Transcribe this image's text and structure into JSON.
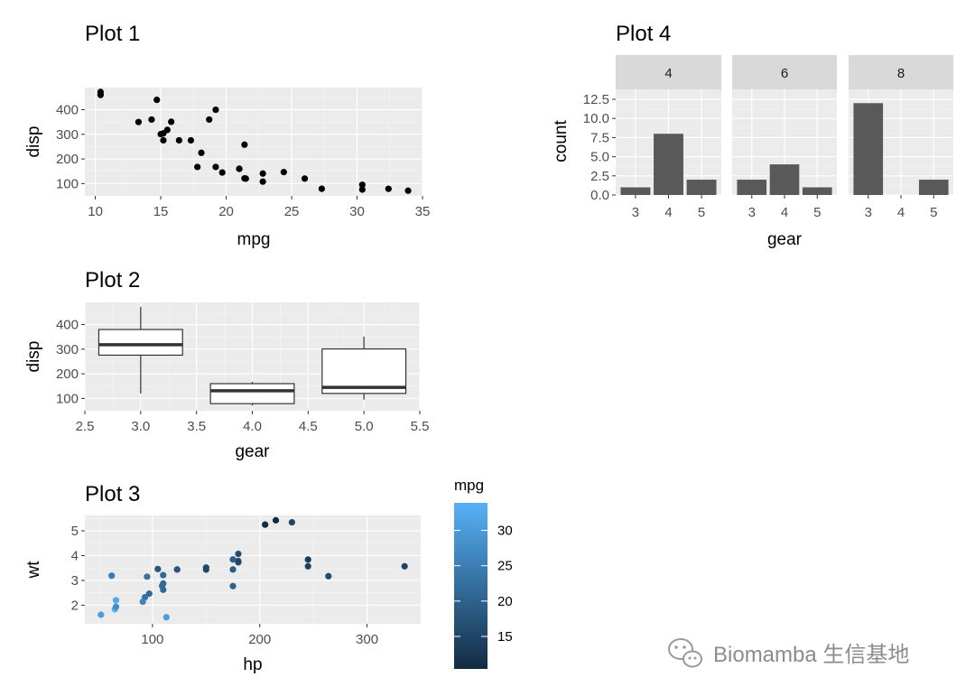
{
  "chart_data": [
    {
      "id": "p1",
      "type": "scatter",
      "title": "Plot 1",
      "xlabel": "mpg",
      "ylabel": "disp",
      "xlim": [
        9.2,
        35
      ],
      "ylim": [
        50,
        490
      ],
      "xticks": [
        10,
        15,
        20,
        25,
        30,
        35
      ],
      "yticks": [
        100,
        200,
        300,
        400
      ],
      "grid": true,
      "x": [
        21,
        21,
        22.8,
        21.4,
        18.7,
        18.1,
        14.3,
        24.4,
        22.8,
        19.2,
        17.8,
        16.4,
        17.3,
        15.2,
        10.4,
        10.4,
        14.7,
        32.4,
        30.4,
        33.9,
        21.5,
        15.5,
        15.2,
        13.3,
        19.2,
        27.3,
        26,
        30.4,
        15.8,
        19.7,
        15,
        21.4
      ],
      "y": [
        160,
        160,
        108,
        258,
        360,
        225,
        360,
        146.7,
        140.8,
        167.6,
        167.6,
        275.8,
        275.8,
        275.8,
        472,
        460,
        440,
        78.7,
        75.7,
        71.1,
        120.1,
        318,
        304,
        350,
        400,
        79,
        120.3,
        95.1,
        351,
        145,
        301,
        121
      ]
    },
    {
      "id": "p2",
      "type": "box",
      "title": "Plot 2",
      "xlabel": "gear",
      "ylabel": "disp",
      "xlim": [
        2.5,
        5.5
      ],
      "ylim": [
        50,
        490
      ],
      "xticks": [
        "2.5",
        "3.0",
        "3.5",
        "4.0",
        "4.5",
        "5.0",
        "5.5"
      ],
      "yticks": [
        100,
        200,
        300,
        400
      ],
      "grid": true,
      "boxes": [
        {
          "x": 3,
          "min": 120.1,
          "q1": 275.8,
          "median": 318,
          "q3": 380,
          "max": 472
        },
        {
          "x": 4,
          "min": 71.1,
          "q1": 78.9,
          "median": 130.9,
          "q3": 160,
          "max": 167.6
        },
        {
          "x": 5,
          "min": 95.1,
          "q1": 120.3,
          "median": 145,
          "q3": 301,
          "max": 351
        }
      ]
    },
    {
      "id": "p3",
      "type": "scatter",
      "title": "Plot 3",
      "xlabel": "hp",
      "ylabel": "wt",
      "xlim": [
        37,
        350
      ],
      "ylim": [
        1.25,
        5.62
      ],
      "xticks": [
        100,
        200,
        300
      ],
      "yticks": [
        2,
        3,
        4,
        5
      ],
      "grid": true,
      "x": [
        110,
        110,
        93,
        110,
        175,
        105,
        245,
        62,
        95,
        123,
        123,
        180,
        180,
        180,
        205,
        215,
        230,
        66,
        52,
        65,
        97,
        150,
        150,
        245,
        175,
        66,
        91,
        113,
        264,
        175,
        335,
        109
      ],
      "y": [
        2.62,
        2.875,
        2.32,
        3.215,
        3.44,
        3.46,
        3.57,
        3.19,
        3.15,
        3.44,
        3.44,
        4.07,
        3.73,
        3.78,
        5.25,
        5.424,
        5.345,
        2.2,
        1.615,
        1.835,
        2.465,
        3.52,
        3.435,
        3.84,
        3.845,
        1.935,
        2.14,
        1.513,
        3.17,
        2.77,
        3.57,
        2.78
      ],
      "color_values": [
        21,
        21,
        22.8,
        21.4,
        18.7,
        18.1,
        14.3,
        24.4,
        22.8,
        19.2,
        17.8,
        16.4,
        17.3,
        15.2,
        10.4,
        10.4,
        14.7,
        32.4,
        30.4,
        33.9,
        21.5,
        15.5,
        15.2,
        13.3,
        19.2,
        27.3,
        26,
        30.4,
        15.8,
        19.7,
        15,
        21.4
      ],
      "legend": {
        "title": "mpg",
        "min": 10.4,
        "max": 33.9,
        "ticks": [
          15,
          20,
          25,
          30
        ],
        "low_color": "#132B43",
        "high_color": "#56B1F7",
        "placement": "right"
      }
    },
    {
      "id": "p4",
      "type": "bar",
      "title": "Plot 4",
      "xlabel": "gear",
      "ylabel": "count",
      "ylim": [
        0,
        13.8
      ],
      "yticks": [
        "0.0",
        "2.5",
        "5.0",
        "7.5",
        "10.0",
        "12.5"
      ],
      "categories": [
        "3",
        "4",
        "5"
      ],
      "facets": [
        {
          "label": "4",
          "values": [
            1,
            8,
            2
          ]
        },
        {
          "label": "6",
          "values": [
            2,
            4,
            1
          ]
        },
        {
          "label": "8",
          "values": [
            12,
            0,
            2
          ]
        }
      ],
      "bar_color": "#595959",
      "grid": true
    }
  ],
  "watermark": {
    "text": "Biomamba 生信基地",
    "icon": "wechat-icon"
  },
  "colors": {
    "panel_bg": "#EBEBEB",
    "grid_major": "#FFFFFF",
    "strip_bg": "#D9D9D9",
    "point": "#000000"
  }
}
